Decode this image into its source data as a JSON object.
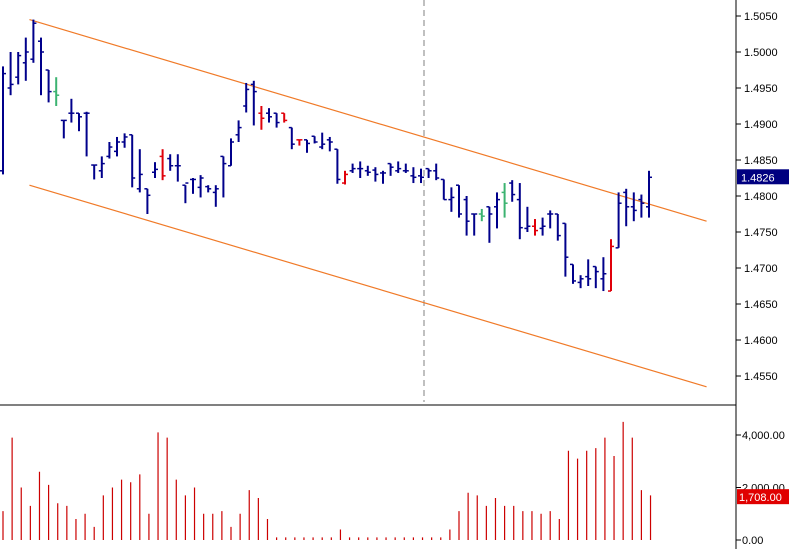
{
  "chart_data": [
    {
      "type": "ohlc",
      "panel": "price",
      "y_ticks": [
        1.455,
        1.46,
        1.465,
        1.47,
        1.475,
        1.48,
        1.485,
        1.49,
        1.495,
        1.5,
        1.505
      ],
      "y_tick_labels": [
        "1.4550",
        "1.4600",
        "1.4650",
        "1.4700",
        "1.4750",
        "1.4800",
        "1.4850",
        "1.4900",
        "1.4950",
        "1.5000",
        "1.5050"
      ],
      "ylim": [
        1.4525,
        1.5075
      ],
      "last_price": 1.4826,
      "last_price_label": "1.4826",
      "bar_count": 81,
      "bars": [
        {
          "i": 0,
          "o": 1.4835,
          "h": 1.498,
          "l": 1.483,
          "c": 1.497,
          "d": "up"
        },
        {
          "i": 1,
          "o": 1.495,
          "h": 1.5,
          "l": 1.494,
          "c": 1.4955,
          "d": "up"
        },
        {
          "i": 2,
          "o": 1.4965,
          "h": 1.5,
          "l": 1.4955,
          "c": 1.4995,
          "d": "up"
        },
        {
          "i": 3,
          "o": 1.4985,
          "h": 1.502,
          "l": 1.496,
          "c": 1.5,
          "d": "up"
        },
        {
          "i": 4,
          "o": 1.499,
          "h": 1.5045,
          "l": 1.4985,
          "c": 1.504,
          "d": "up"
        },
        {
          "i": 5,
          "o": 1.5015,
          "h": 1.502,
          "l": 1.494,
          "c": 1.5,
          "d": "flat"
        },
        {
          "i": 6,
          "o": 1.4975,
          "h": 1.4975,
          "l": 1.493,
          "c": 1.4945,
          "d": "flat"
        },
        {
          "i": 7,
          "o": 1.4945,
          "h": 1.4965,
          "l": 1.4925,
          "c": 1.494,
          "d": "flat"
        },
        {
          "i": 8,
          "o": 1.4905,
          "h": 1.4905,
          "l": 1.488,
          "c": 1.4905,
          "d": "flat"
        },
        {
          "i": 9,
          "o": 1.4915,
          "h": 1.4935,
          "l": 1.4902,
          "c": 1.4915,
          "d": "flat"
        },
        {
          "i": 10,
          "o": 1.4915,
          "h": 1.4915,
          "l": 1.489,
          "c": 1.491,
          "d": "up"
        },
        {
          "i": 11,
          "o": 1.4915,
          "h": 1.4917,
          "l": 1.4855,
          "c": 1.4915,
          "d": "up"
        },
        {
          "i": 12,
          "o": 1.4843,
          "h": 1.4843,
          "l": 1.4823,
          "c": 1.4843,
          "d": "up"
        },
        {
          "i": 13,
          "o": 1.4835,
          "h": 1.4855,
          "l": 1.4825,
          "c": 1.4845,
          "d": "up"
        },
        {
          "i": 14,
          "o": 1.4855,
          "h": 1.4875,
          "l": 1.4852,
          "c": 1.4868,
          "d": "up"
        },
        {
          "i": 15,
          "o": 1.4862,
          "h": 1.4882,
          "l": 1.4855,
          "c": 1.4875,
          "d": "up"
        },
        {
          "i": 16,
          "o": 1.4875,
          "h": 1.4887,
          "l": 1.4867,
          "c": 1.4882,
          "d": "up"
        },
        {
          "i": 17,
          "o": 1.4885,
          "h": 1.4885,
          "l": 1.4812,
          "c": 1.4825,
          "d": "up"
        },
        {
          "i": 18,
          "o": 1.481,
          "h": 1.4865,
          "l": 1.4805,
          "c": 1.483,
          "d": "up"
        },
        {
          "i": 19,
          "o": 1.481,
          "h": 1.481,
          "l": 1.4775,
          "c": 1.4801,
          "d": "up"
        },
        {
          "i": 20,
          "o": 1.4833,
          "h": 1.4847,
          "l": 1.4825,
          "c": 1.4837,
          "d": "up"
        },
        {
          "i": 21,
          "o": 1.4855,
          "h": 1.4865,
          "l": 1.4822,
          "c": 1.4828,
          "d": "down"
        },
        {
          "i": 22,
          "o": 1.4852,
          "h": 1.4858,
          "l": 1.4835,
          "c": 1.4842,
          "d": "flat"
        },
        {
          "i": 23,
          "o": 1.4842,
          "h": 1.4858,
          "l": 1.482,
          "c": 1.4842,
          "d": "flat"
        },
        {
          "i": 24,
          "o": 1.4815,
          "h": 1.4815,
          "l": 1.479,
          "c": 1.4818,
          "d": "flat"
        },
        {
          "i": 25,
          "o": 1.4823,
          "h": 1.4825,
          "l": 1.4803,
          "c": 1.4823,
          "d": "up"
        },
        {
          "i": 26,
          "o": 1.4812,
          "h": 1.4829,
          "l": 1.4798,
          "c": 1.4825,
          "d": "up"
        },
        {
          "i": 27,
          "o": 1.4813,
          "h": 1.4815,
          "l": 1.4805,
          "c": 1.481,
          "d": "up"
        },
        {
          "i": 28,
          "o": 1.4805,
          "h": 1.4815,
          "l": 1.4785,
          "c": 1.481,
          "d": "flat"
        },
        {
          "i": 29,
          "o": 1.4855,
          "h": 1.4855,
          "l": 1.4798,
          "c": 1.4845,
          "d": "up"
        },
        {
          "i": 30,
          "o": 1.4842,
          "h": 1.488,
          "l": 1.4842,
          "c": 1.4875,
          "d": "up"
        },
        {
          "i": 31,
          "o": 1.4885,
          "h": 1.4905,
          "l": 1.4875,
          "c": 1.4895,
          "d": "up"
        },
        {
          "i": 32,
          "o": 1.4925,
          "h": 1.4957,
          "l": 1.4916,
          "c": 1.4948,
          "d": "up"
        },
        {
          "i": 33,
          "o": 1.4955,
          "h": 1.496,
          "l": 1.4898,
          "c": 1.4945,
          "d": "flat"
        },
        {
          "i": 34,
          "o": 1.4915,
          "h": 1.4925,
          "l": 1.4892,
          "c": 1.4908,
          "d": "down"
        },
        {
          "i": 35,
          "o": 1.4915,
          "h": 1.4922,
          "l": 1.4902,
          "c": 1.491,
          "d": "flat"
        },
        {
          "i": 36,
          "o": 1.4915,
          "h": 1.4915,
          "l": 1.4895,
          "c": 1.4902,
          "d": "flat"
        },
        {
          "i": 37,
          "o": 1.4915,
          "h": 1.4915,
          "l": 1.4902,
          "c": 1.4905,
          "d": "down"
        },
        {
          "i": 38,
          "o": 1.4895,
          "h": 1.4895,
          "l": 1.4865,
          "c": 1.4872,
          "d": "up"
        },
        {
          "i": 39,
          "o": 1.4878,
          "h": 1.4878,
          "l": 1.487,
          "c": 1.4878,
          "d": "down"
        },
        {
          "i": 40,
          "o": 1.4878,
          "h": 1.4878,
          "l": 1.486,
          "c": 1.4873,
          "d": "flat"
        },
        {
          "i": 41,
          "o": 1.4883,
          "h": 1.4883,
          "l": 1.4873,
          "c": 1.4875,
          "d": "flat"
        },
        {
          "i": 42,
          "o": 1.4868,
          "h": 1.4888,
          "l": 1.4865,
          "c": 1.4872,
          "d": "flat"
        },
        {
          "i": 43,
          "o": 1.4878,
          "h": 1.4882,
          "l": 1.4862,
          "c": 1.4875,
          "d": "flat"
        },
        {
          "i": 44,
          "o": 1.4865,
          "h": 1.4865,
          "l": 1.4817,
          "c": 1.4823,
          "d": "up"
        },
        {
          "i": 45,
          "o": 1.4818,
          "h": 1.4835,
          "l": 1.4816,
          "c": 1.483,
          "d": "down"
        },
        {
          "i": 46,
          "o": 1.4835,
          "h": 1.4845,
          "l": 1.4832,
          "c": 1.4838,
          "d": "flat"
        },
        {
          "i": 47,
          "o": 1.4838,
          "h": 1.4848,
          "l": 1.4825,
          "c": 1.4838,
          "d": "flat"
        },
        {
          "i": 48,
          "o": 1.4835,
          "h": 1.4842,
          "l": 1.4828,
          "c": 1.4833,
          "d": "flat"
        },
        {
          "i": 49,
          "o": 1.4836,
          "h": 1.484,
          "l": 1.482,
          "c": 1.483,
          "d": "flat"
        },
        {
          "i": 50,
          "o": 1.4832,
          "h": 1.4835,
          "l": 1.4817,
          "c": 1.4832,
          "d": "flat"
        },
        {
          "i": 51,
          "o": 1.4845,
          "h": 1.4845,
          "l": 1.4828,
          "c": 1.484,
          "d": "up"
        },
        {
          "i": 52,
          "o": 1.4835,
          "h": 1.4848,
          "l": 1.4832,
          "c": 1.4838,
          "d": "flat"
        },
        {
          "i": 53,
          "o": 1.4835,
          "h": 1.4845,
          "l": 1.4832,
          "c": 1.4835,
          "d": "flat"
        },
        {
          "i": 54,
          "o": 1.4828,
          "h": 1.484,
          "l": 1.4818,
          "c": 1.4826,
          "d": "flat"
        },
        {
          "i": 55,
          "o": 1.4828,
          "h": 1.4838,
          "l": 1.4818,
          "c": 1.4826,
          "d": "flat"
        },
        {
          "i": 56,
          "o": 1.4838,
          "h": 1.4838,
          "l": 1.4825,
          "c": 1.4835,
          "d": "flat"
        },
        {
          "i": 57,
          "o": 1.4835,
          "h": 1.4845,
          "l": 1.4822,
          "c": 1.4825,
          "d": "flat"
        },
        {
          "i": 58,
          "o": 1.4823,
          "h": 1.4823,
          "l": 1.4795,
          "c": 1.4795,
          "d": "flat"
        },
        {
          "i": 59,
          "o": 1.4795,
          "h": 1.4812,
          "l": 1.4778,
          "c": 1.4798,
          "d": "flat"
        },
        {
          "i": 60,
          "o": 1.4815,
          "h": 1.4815,
          "l": 1.477,
          "c": 1.4775,
          "d": "flat"
        },
        {
          "i": 61,
          "o": 1.4795,
          "h": 1.48,
          "l": 1.4745,
          "c": 1.4765,
          "d": "flat"
        },
        {
          "i": 62,
          "o": 1.4775,
          "h": 1.4775,
          "l": 1.4745,
          "c": 1.4775,
          "d": "flat"
        },
        {
          "i": 63,
          "o": 1.4775,
          "h": 1.4782,
          "l": 1.4765,
          "c": 1.4772,
          "d": "flat"
        },
        {
          "i": 64,
          "o": 1.4785,
          "h": 1.4785,
          "l": 1.4735,
          "c": 1.4775,
          "d": "up"
        },
        {
          "i": 65,
          "o": 1.4785,
          "h": 1.4805,
          "l": 1.4755,
          "c": 1.4795,
          "d": "up"
        },
        {
          "i": 66,
          "o": 1.4805,
          "h": 1.4818,
          "l": 1.477,
          "c": 1.479,
          "d": "flat"
        },
        {
          "i": 67,
          "o": 1.4818,
          "h": 1.4822,
          "l": 1.4792,
          "c": 1.4802,
          "d": "flat"
        },
        {
          "i": 68,
          "o": 1.4795,
          "h": 1.4818,
          "l": 1.474,
          "c": 1.4756,
          "d": "up"
        },
        {
          "i": 69,
          "o": 1.4755,
          "h": 1.4785,
          "l": 1.475,
          "c": 1.4758,
          "d": "flat"
        },
        {
          "i": 70,
          "o": 1.4758,
          "h": 1.4768,
          "l": 1.4745,
          "c": 1.4752,
          "d": "down"
        },
        {
          "i": 71,
          "o": 1.4755,
          "h": 1.477,
          "l": 1.4745,
          "c": 1.4758,
          "d": "flat"
        },
        {
          "i": 72,
          "o": 1.4775,
          "h": 1.478,
          "l": 1.4755,
          "c": 1.4775,
          "d": "up"
        },
        {
          "i": 73,
          "o": 1.4775,
          "h": 1.4775,
          "l": 1.4738,
          "c": 1.4745,
          "d": "flat"
        },
        {
          "i": 74,
          "o": 1.4762,
          "h": 1.4762,
          "l": 1.4688,
          "c": 1.4715,
          "d": "flat"
        },
        {
          "i": 75,
          "o": 1.4705,
          "h": 1.4705,
          "l": 1.4678,
          "c": 1.4682,
          "d": "flat"
        },
        {
          "i": 76,
          "o": 1.468,
          "h": 1.469,
          "l": 1.4672,
          "c": 1.4685,
          "d": "flat"
        },
        {
          "i": 77,
          "o": 1.4688,
          "h": 1.4712,
          "l": 1.4675,
          "c": 1.4685,
          "d": "flat"
        },
        {
          "i": 78,
          "o": 1.4702,
          "h": 1.4702,
          "l": 1.4672,
          "c": 1.4695,
          "d": "flat"
        },
        {
          "i": 79,
          "o": 1.4685,
          "h": 1.4715,
          "l": 1.4668,
          "c": 1.4692,
          "d": "flat"
        },
        {
          "i": 80,
          "o": 1.4668,
          "h": 1.474,
          "l": 1.4668,
          "c": 1.473,
          "d": "down"
        }
      ],
      "bars_tail": [
        {
          "i": 81,
          "o": 1.4728,
          "h": 1.4805,
          "l": 1.4728,
          "c": 1.479,
          "d": "up"
        },
        {
          "i": 82,
          "o": 1.4805,
          "h": 1.481,
          "l": 1.4758,
          "c": 1.4785,
          "d": "up"
        },
        {
          "i": 83,
          "o": 1.4785,
          "h": 1.4805,
          "l": 1.4765,
          "c": 1.478,
          "d": "up"
        },
        {
          "i": 84,
          "o": 1.4795,
          "h": 1.4802,
          "l": 1.477,
          "c": 1.479,
          "d": "up"
        },
        {
          "i": 85,
          "o": 1.4785,
          "h": 1.4835,
          "l": 1.477,
          "c": 1.4826,
          "d": "up"
        }
      ],
      "channel_lines": [
        {
          "name": "upper-channel",
          "x_start": 4,
          "y_start": 1.5045,
          "x_end": 96,
          "y_end": 1.4765
        },
        {
          "name": "lower-channel",
          "x_start": 4,
          "y_start": 1.4815,
          "x_end": 96,
          "y_end": 1.4535
        }
      ],
      "colors": {
        "up": "#00008b",
        "neutral": "#00008b",
        "green": "#3cb371",
        "red": "#e0000a",
        "channel": "#f07a28",
        "badge_bg": "#000080",
        "grid": "#808080"
      }
    },
    {
      "type": "bar",
      "panel": "volume",
      "y_ticks": [
        0,
        2000,
        4000
      ],
      "y_tick_labels": [
        "0.00",
        "2,000.00",
        "4,000.00"
      ],
      "ylim": [
        0,
        4600
      ],
      "last_value": 1708,
      "last_value_label": "1,708.00",
      "values": [
        1100,
        3900,
        2000,
        1300,
        2600,
        2100,
        1400,
        1300,
        800,
        1000,
        500,
        1700,
        2000,
        2300,
        2200,
        2500,
        1000,
        4100,
        3900,
        2300,
        1700,
        2000,
        1000,
        1000,
        1100,
        500,
        1000,
        1900,
        1600,
        800,
        100,
        100,
        100,
        100,
        100,
        100,
        100,
        400,
        100,
        100,
        100,
        100,
        100,
        100,
        100,
        100,
        100,
        100,
        100,
        400,
        1100,
        1800,
        1700,
        1300,
        1600,
        1300,
        1300,
        1100,
        1100,
        1000,
        1100,
        800,
        3400,
        3100,
        3400,
        3500,
        3900,
        3200,
        4500,
        3900,
        1900,
        1700
      ],
      "color": "#cc0000",
      "badge_bg": "#e00000"
    }
  ]
}
